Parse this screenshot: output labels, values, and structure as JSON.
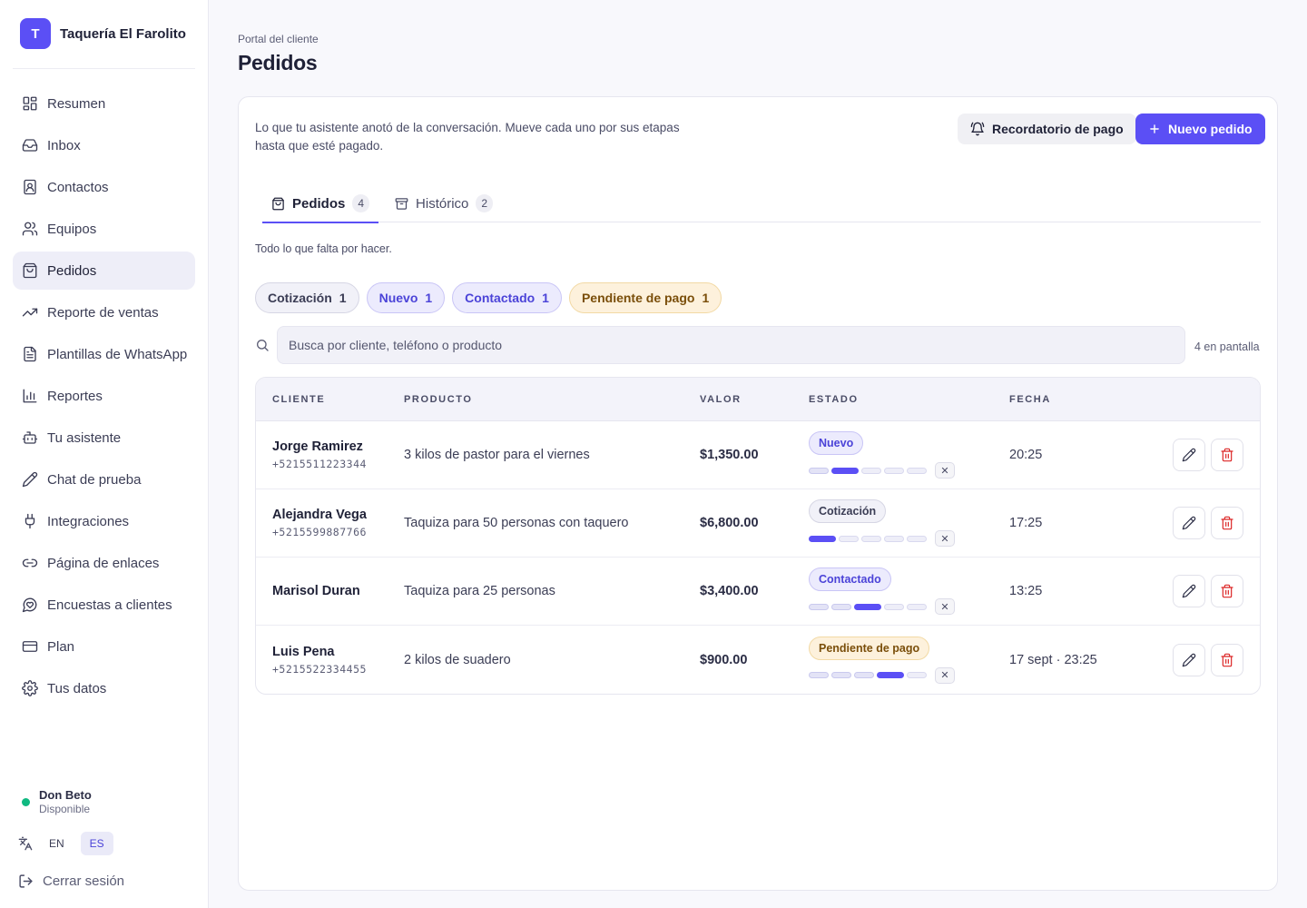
{
  "brand": {
    "initial": "T",
    "name": "Taquería El Farolito"
  },
  "nav": [
    {
      "label": "Resumen",
      "icon": "dashboard-icon"
    },
    {
      "label": "Inbox",
      "icon": "inbox-icon"
    },
    {
      "label": "Contactos",
      "icon": "contacts-icon"
    },
    {
      "label": "Equipos",
      "icon": "users-icon"
    },
    {
      "label": "Pedidos",
      "icon": "shopping-bag-icon",
      "active": true
    },
    {
      "label": "Reporte de ventas",
      "icon": "trending-up-icon"
    },
    {
      "label": "Plantillas de WhatsApp",
      "icon": "file-text-icon"
    },
    {
      "label": "Reportes",
      "icon": "bar-chart-icon"
    },
    {
      "label": "Tu asistente",
      "icon": "bot-icon"
    },
    {
      "label": "Chat de prueba",
      "icon": "pencil-icon"
    },
    {
      "label": "Integraciones",
      "icon": "plug-icon"
    },
    {
      "label": "Página de enlaces",
      "icon": "link-icon"
    },
    {
      "label": "Encuestas a clientes",
      "icon": "message-heart-icon"
    },
    {
      "label": "Plan",
      "icon": "credit-card-icon"
    },
    {
      "label": "Tus datos",
      "icon": "gear-icon"
    }
  ],
  "user": {
    "name": "Don Beto",
    "status": "Disponible",
    "status_color": "#10b981"
  },
  "lang": {
    "en": "EN",
    "es": "ES",
    "active": "ES"
  },
  "logout_label": "Cerrar sesión",
  "header": {
    "breadcrumb": "Portal del cliente",
    "title": "Pedidos"
  },
  "intro": "Lo que tu asistente anotó de la conversación. Mueve cada uno por sus etapas hasta que esté pagado.",
  "buttons": {
    "reminder": "Recordatorio de pago",
    "new_order": "Nuevo pedido"
  },
  "tabs": [
    {
      "label": "Pedidos",
      "count": "4",
      "active": true
    },
    {
      "label": "Histórico",
      "count": "2"
    }
  ],
  "subtext": "Todo lo que falta por hacer.",
  "chips": [
    {
      "label": "Cotización",
      "count": "1",
      "bg": "#f1f1f8",
      "border": "#d6d6e4",
      "color": "#3b3d55"
    },
    {
      "label": "Nuevo",
      "count": "1",
      "bg": "#ecebfd",
      "border": "#c9c5f6",
      "color": "#4b43d8"
    },
    {
      "label": "Contactado",
      "count": "1",
      "bg": "#ecebfd",
      "border": "#c9c5f6",
      "color": "#4b43d8"
    },
    {
      "label": "Pendiente de pago",
      "count": "1",
      "bg": "#fdf1dc",
      "border": "#f2d9a4",
      "color": "#7a4e0a"
    }
  ],
  "search": {
    "placeholder": "Busca por cliente, teléfono o producto",
    "count_label": "4 en pantalla"
  },
  "columns": {
    "client": "CLIENTE",
    "product": "PRODUCTO",
    "value": "VALOR",
    "status": "ESTADO",
    "date": "FECHA"
  },
  "orders": [
    {
      "name": "Jorge Ramirez",
      "phone": "+5215511223344",
      "product": "3 kilos de pastor para el viernes",
      "value": "$1,350.00",
      "status": "Nuevo",
      "stage": 2,
      "status_bg": "#ecebfd",
      "status_border": "#c9c5f6",
      "status_color": "#4b43d8",
      "date": "20:25"
    },
    {
      "name": "Alejandra Vega",
      "phone": "+5215599887766",
      "product": "Taquiza para 50 personas con taquero",
      "value": "$6,800.00",
      "status": "Cotización",
      "stage": 1,
      "status_bg": "#f1f1f8",
      "status_border": "#d6d6e4",
      "status_color": "#3b3d55",
      "date": "17:25"
    },
    {
      "name": "Marisol Duran",
      "phone": "",
      "product": "Taquiza para 25 personas",
      "value": "$3,400.00",
      "status": "Contactado",
      "stage": 3,
      "status_bg": "#ecebfd",
      "status_border": "#c9c5f6",
      "status_color": "#4b43d8",
      "date": "13:25"
    },
    {
      "name": "Luis Pena",
      "phone": "+5215522334455",
      "product": "2 kilos de suadero",
      "value": "$900.00",
      "status": "Pendiente de pago",
      "stage": 4,
      "status_bg": "#fdf1dc",
      "status_border": "#f2d9a4",
      "status_color": "#7a4e0a",
      "date": "17 sept · 23:25"
    }
  ],
  "total_stages": 5,
  "colors": {
    "accent": "#5b4ff5",
    "danger": "#dc2626"
  }
}
